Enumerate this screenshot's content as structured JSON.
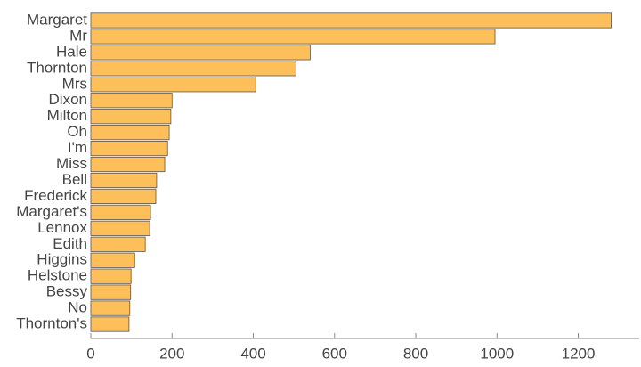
{
  "chart_data": {
    "type": "hbar",
    "categories": [
      "Margaret",
      "Mr",
      "Hale",
      "Thornton",
      "Mrs",
      "Dixon",
      "Milton",
      "Oh",
      "I'm",
      "Miss",
      "Bell",
      "Frederick",
      "Margaret's",
      "Lennox",
      "Edith",
      "Higgins",
      "Helstone",
      "Bessy",
      "No",
      "Thornton's"
    ],
    "values": [
      1281,
      995,
      540,
      505,
      406,
      200,
      197,
      193,
      189,
      182,
      162,
      160,
      147,
      145,
      134,
      108,
      99,
      98,
      96,
      94
    ],
    "color": "#fdbf5a",
    "xlim": [
      0,
      1350
    ],
    "xticks": [
      0,
      200,
      400,
      600,
      800,
      1000,
      1200
    ]
  }
}
